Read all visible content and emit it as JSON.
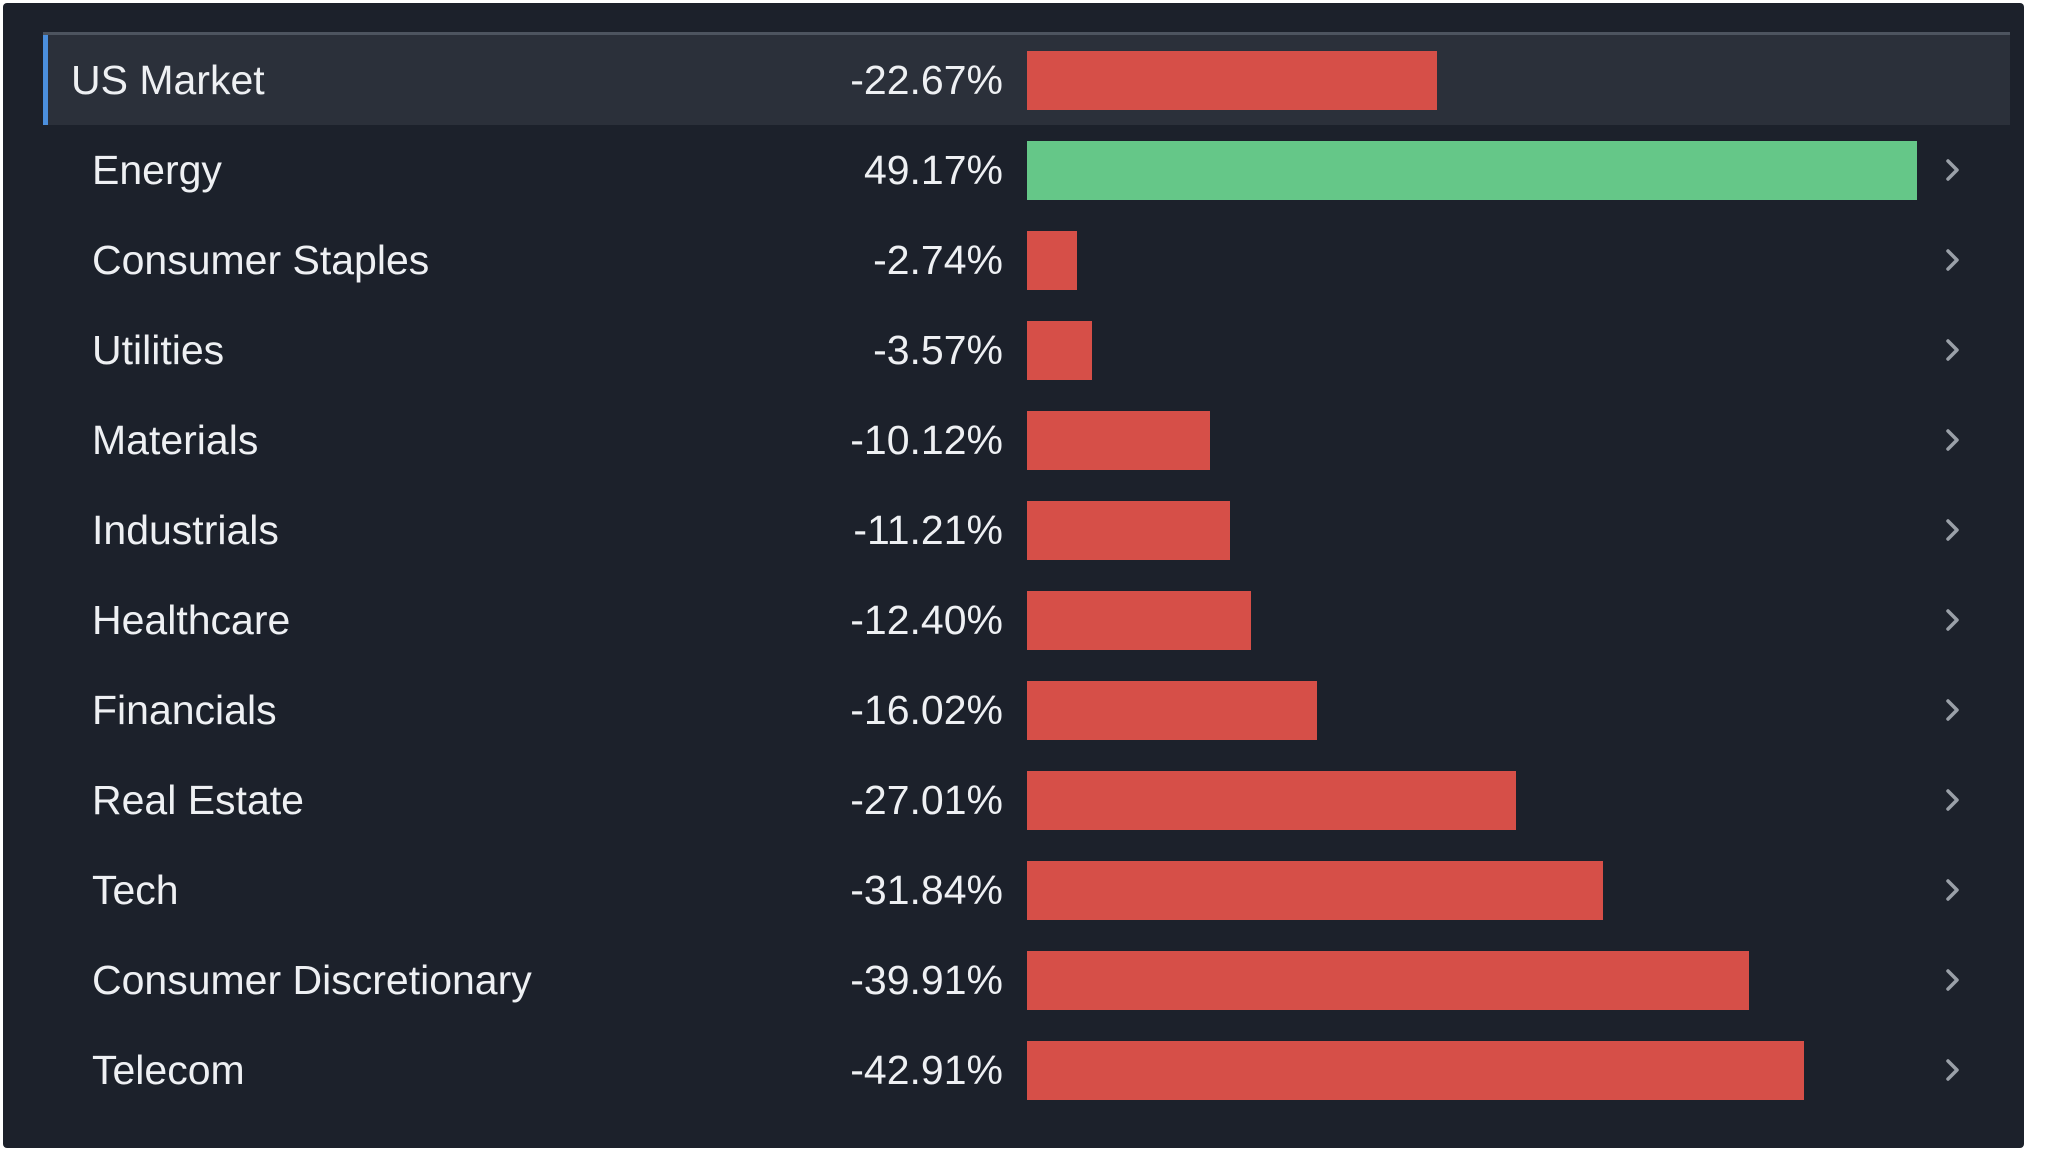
{
  "colors": {
    "panel_background": "#1c212b",
    "summary_row_background": "#2b303a",
    "accent": "#4b8fdd",
    "negative": "#d64f48",
    "positive": "#65c788",
    "text": "#eef0f3",
    "chevron": "#9aa0a8"
  },
  "icons": {
    "row_action": "chevron-right-icon"
  },
  "chart_data": {
    "type": "bar",
    "orientation": "horizontal",
    "unit": "%",
    "summary": {
      "label": "US Market",
      "value": -22.67,
      "value_text": "-22.67%"
    },
    "categories": [
      "Energy",
      "Consumer Staples",
      "Utilities",
      "Materials",
      "Industrials",
      "Healthcare",
      "Financials",
      "Real Estate",
      "Tech",
      "Consumer Discretionary",
      "Telecom"
    ],
    "values": [
      49.17,
      -2.74,
      -3.57,
      -10.12,
      -11.21,
      -12.4,
      -16.02,
      -27.01,
      -31.84,
      -39.91,
      -42.91
    ],
    "value_texts": [
      "49.17%",
      "-2.74%",
      "-3.57%",
      "-10.12%",
      "-11.21%",
      "-12.40%",
      "-16.02%",
      "-27.01%",
      "-31.84%",
      "-39.91%",
      "-42.91%"
    ],
    "bar_length": "absolute value",
    "grid": false,
    "legend": "none"
  }
}
